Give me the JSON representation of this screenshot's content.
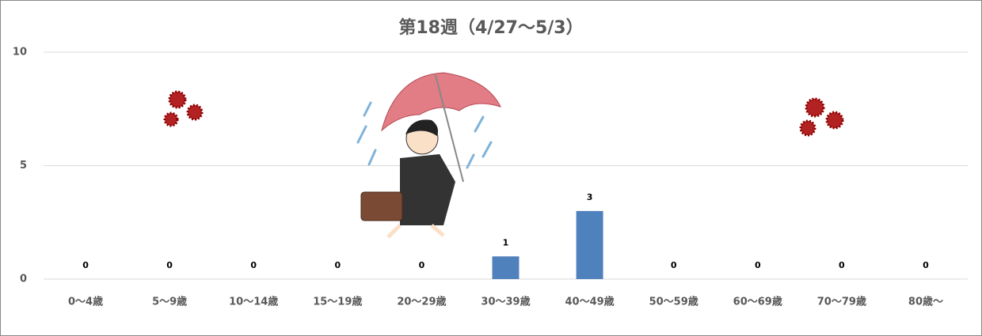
{
  "chart_data": {
    "type": "bar",
    "title": "第18週（4/27～5/3）",
    "categories": [
      "0～4歳",
      "5～9歳",
      "10～14歳",
      "15～19歳",
      "20～29歳",
      "30～39歳",
      "40～49歳",
      "50～59歳",
      "60～69歳",
      "70～79歳",
      "80歳～"
    ],
    "values": [
      0,
      0,
      0,
      0,
      0,
      1,
      3,
      0,
      0,
      0,
      0
    ],
    "color": "#4f81bd",
    "ylim": [
      0,
      10
    ],
    "yticks": [
      0,
      5,
      10
    ],
    "grid": true
  }
}
